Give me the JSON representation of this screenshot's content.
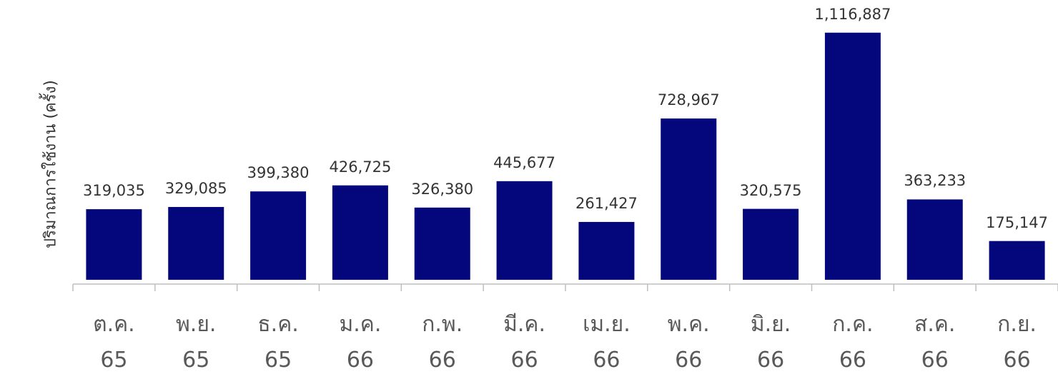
{
  "chart_data": {
    "type": "bar",
    "y_axis_label": "ปริมาณการใช้งาน (ครั้ง)",
    "categories": [
      "ต.ค.\n65",
      "พ.ย.\n65",
      "ธ.ค.\n65",
      "ม.ค.\n66",
      "ก.พ.\n66",
      "มี.ค.\n66",
      "เม.ย.\n66",
      "พ.ค.\n66",
      "มิ.ย.\n66",
      "ก.ค.\n66",
      "ส.ค.\n66",
      "ก.ย.\n66"
    ],
    "values": [
      319035,
      329085,
      399380,
      426725,
      326380,
      445677,
      261427,
      728967,
      320575,
      1116887,
      363233,
      175147
    ],
    "value_labels": [
      "319,035",
      "329,085",
      "399,380",
      "426,725",
      "326,380",
      "445,677",
      "261,427",
      "728,967",
      "320,575",
      "1,116,887",
      "363,233",
      "175,147"
    ],
    "color": "#03077b",
    "ylim": [
      0,
      1200000
    ]
  }
}
